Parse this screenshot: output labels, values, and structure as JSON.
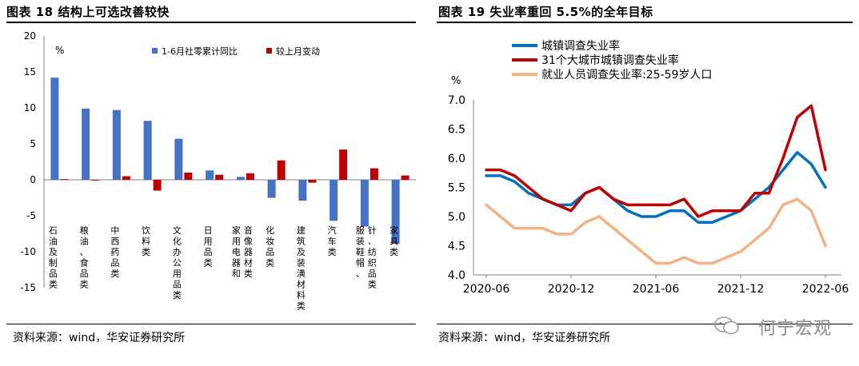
{
  "left": {
    "title": "图表 18  结构上可选改善较快",
    "source": "资料来源：wind，华安证券研究所"
  },
  "right": {
    "title": "图表 19  失业率重回 5.5%的全年目标",
    "source": "资料来源：wind，华安证券研究所"
  },
  "watermark": "何宁宏观",
  "colors": {
    "blue": "#4472C4",
    "darkred": "#C00000",
    "lineblue": "#0070C0",
    "peach": "#F4B183"
  },
  "chart_data": [
    {
      "type": "bar",
      "unit": "%",
      "ylim": [
        -15,
        20
      ],
      "yticks": [
        -15,
        -10,
        -5,
        0,
        5,
        10,
        15,
        20
      ],
      "legend_position": "top",
      "categories": [
        "石油及制品类",
        "粮油、食品类",
        "中西药品类",
        "饮料类",
        "文化办公用品类",
        "日用品类",
        "家用电器和音像器材类",
        "化妆品类",
        "建筑及装潢材料类",
        "汽车类",
        "服装鞋帽、针、纺织品类",
        "家具类"
      ],
      "category_lines": [
        [
          "石油及制品类"
        ],
        [
          "粮油、食品类"
        ],
        [
          "中西药品类"
        ],
        [
          "饮料类"
        ],
        [
          "文化办公用品类"
        ],
        [
          "日用品类"
        ],
        [
          "家用电器和",
          "音像器材类"
        ],
        [
          "化妆品类"
        ],
        [
          "建筑及装潢材料类"
        ],
        [
          "汽车类"
        ],
        [
          "服装鞋帽、",
          "针、纺织品类"
        ],
        [
          "家具类"
        ]
      ],
      "series": [
        {
          "name": "1-6月社零累计同比",
          "color": "#4472C4",
          "values": [
            14.2,
            9.9,
            9.7,
            8.2,
            5.7,
            1.3,
            0.4,
            -2.5,
            -2.9,
            -5.7,
            -6.5,
            -8.9
          ]
        },
        {
          "name": "较上月变动",
          "color": "#C00000",
          "values": [
            0.1,
            -0.1,
            0.5,
            -1.5,
            1.0,
            0.7,
            0.9,
            2.7,
            -0.4,
            4.2,
            1.6,
            0.6
          ]
        }
      ]
    },
    {
      "type": "line",
      "unit": "%",
      "ylim": [
        4.0,
        7.0
      ],
      "yticks": [
        4.0,
        4.5,
        5.0,
        5.5,
        6.0,
        6.5,
        7.0
      ],
      "x_labels": [
        "2020-06",
        "2020-12",
        "2021-06",
        "2021-12",
        "2022-06"
      ],
      "x_label_index": [
        0,
        6,
        12,
        18,
        24
      ],
      "legend_position": "top-left",
      "series": [
        {
          "name": "城镇调查失业率",
          "color": "#0070C0",
          "values": [
            5.7,
            5.7,
            5.6,
            5.4,
            5.3,
            5.2,
            5.2,
            5.4,
            5.5,
            5.3,
            5.1,
            5.0,
            5.0,
            5.1,
            5.1,
            4.9,
            4.9,
            5.0,
            5.1,
            5.3,
            5.5,
            5.8,
            6.1,
            5.9,
            5.5
          ]
        },
        {
          "name": "31个大城市城镇调查失业率",
          "color": "#C00000",
          "values": [
            5.8,
            5.8,
            5.7,
            5.5,
            5.3,
            5.2,
            5.1,
            5.4,
            5.5,
            5.3,
            5.2,
            5.2,
            5.2,
            5.2,
            5.3,
            5.0,
            5.1,
            5.1,
            5.1,
            5.4,
            5.4,
            6.0,
            6.7,
            6.9,
            5.8
          ]
        },
        {
          "name": "就业人员调查失业率:25-59岁人口",
          "color": "#F4B183",
          "values": [
            5.2,
            5.0,
            4.8,
            4.8,
            4.8,
            4.7,
            4.7,
            4.9,
            5.0,
            4.8,
            4.6,
            4.4,
            4.2,
            4.2,
            4.3,
            4.2,
            4.2,
            4.3,
            4.4,
            4.6,
            4.8,
            5.2,
            5.3,
            5.1,
            4.5
          ]
        }
      ]
    }
  ]
}
